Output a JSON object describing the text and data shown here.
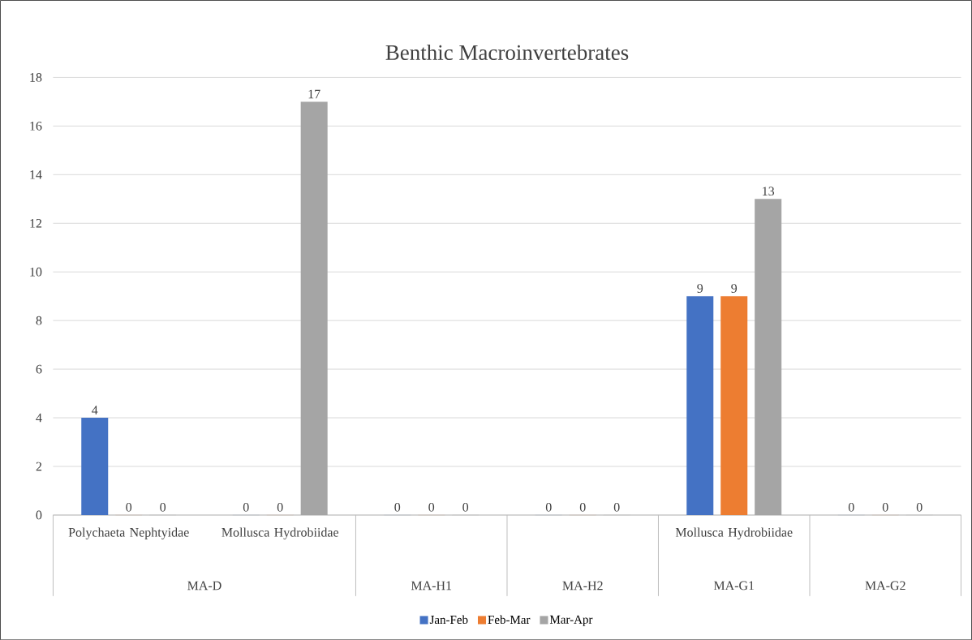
{
  "chart_data": {
    "type": "bar",
    "title": "Benthic Macroinvertebrates",
    "categories": [
      "Polychaeta Nephtyidae",
      "Mollusca Hydrobiidae",
      null,
      null,
      "Mollusca Hydrobiidae",
      null
    ],
    "series": [
      {
        "name": "Jan-Feb",
        "color": "#4472c4",
        "values": [
          4,
          0,
          0,
          0,
          9,
          0
        ]
      },
      {
        "name": "Feb-Mar",
        "color": "#ed7d31",
        "values": [
          0,
          0,
          0,
          0,
          9,
          0
        ]
      },
      {
        "name": "Mar-Apr",
        "color": "#a5a5a5",
        "values": [
          0,
          17,
          0,
          0,
          13,
          0
        ]
      }
    ],
    "ylim": [
      0,
      18
    ],
    "yticks": [
      0,
      2,
      4,
      6,
      8,
      10,
      12,
      14,
      16,
      18
    ],
    "grid": "y",
    "legend": "bottom",
    "data_labels": true,
    "annotations": [
      "MA-D",
      "MA-H1",
      "MA-H2",
      "MA-G1",
      "MA-G2"
    ]
  }
}
